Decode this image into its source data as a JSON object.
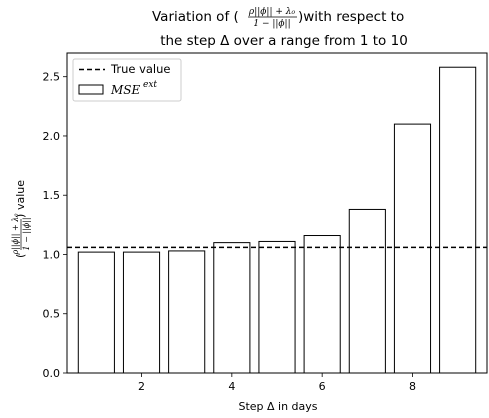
{
  "chart_data": {
    "type": "bar",
    "title_line1_prefix": "Variation of (",
    "title_frac_num": "ρ||ϕ|| + λ₀",
    "title_frac_den": "1 − ||ϕ||",
    "title_line1_suffix": ")with respect to",
    "title_line2": "the step Δ over a range from 1 to 10",
    "xlabel": "Step Δ in days",
    "ylabel_frac_num": "ρ||ϕ|| + λ₀",
    "ylabel_frac_den": "1 − ||ϕ||",
    "ylabel_suffix": "value",
    "x": [
      1,
      2,
      3,
      4,
      5,
      6,
      7,
      8,
      9
    ],
    "values": [
      1.02,
      1.02,
      1.03,
      1.1,
      1.11,
      1.16,
      1.38,
      2.1,
      2.58
    ],
    "true_value": 1.06,
    "xlim": [
      0.35,
      9.65
    ],
    "ylim": [
      0,
      2.7
    ],
    "xticks": [
      2,
      4,
      6,
      8
    ],
    "yticks": [
      "0.0",
      "0.5",
      "1.0",
      "1.5",
      "2.0",
      "2.5"
    ],
    "legend": {
      "placement": "top-left",
      "true_value_label": "True value",
      "mse_label_base": "MSE",
      "mse_label_sup": "ext"
    },
    "grid": false,
    "colors": {
      "bar_fill": "#ffffff",
      "bar_edge": "#000000",
      "true_line": "#000000"
    }
  }
}
